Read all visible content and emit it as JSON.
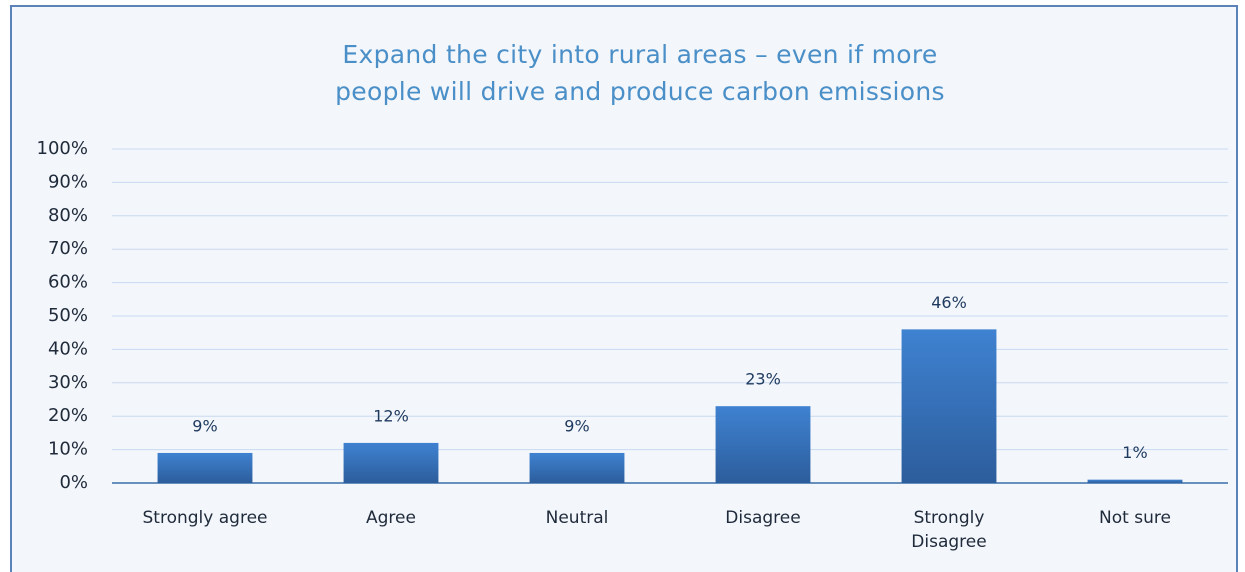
{
  "chart_data": {
    "type": "bar",
    "title": "Expand the city into rural areas – even if more people will drive and produce carbon emissions",
    "categories": [
      "Strongly agree",
      "Agree",
      "Neutral",
      "Disagree",
      "Strongly Disagree",
      "Not sure"
    ],
    "values": [
      9,
      12,
      9,
      23,
      46,
      1
    ],
    "value_labels": [
      "9%",
      "12%",
      "9%",
      "23%",
      "46%",
      "1%"
    ],
    "color": "#3a77c2",
    "ylim": [
      0,
      100
    ],
    "yticks": [
      {
        "value": 0,
        "label": "0%"
      },
      {
        "value": 10,
        "label": "10%"
      },
      {
        "value": 20,
        "label": "20%"
      },
      {
        "value": 30,
        "label": "30%"
      },
      {
        "value": 40,
        "label": "40%"
      },
      {
        "value": 50,
        "label": "50%"
      },
      {
        "value": 60,
        "label": "60%"
      },
      {
        "value": 70,
        "label": "70%"
      },
      {
        "value": 80,
        "label": "80%"
      },
      {
        "value": 90,
        "label": "90%"
      },
      {
        "value": 100,
        "label": "100%"
      }
    ],
    "grid": true
  }
}
